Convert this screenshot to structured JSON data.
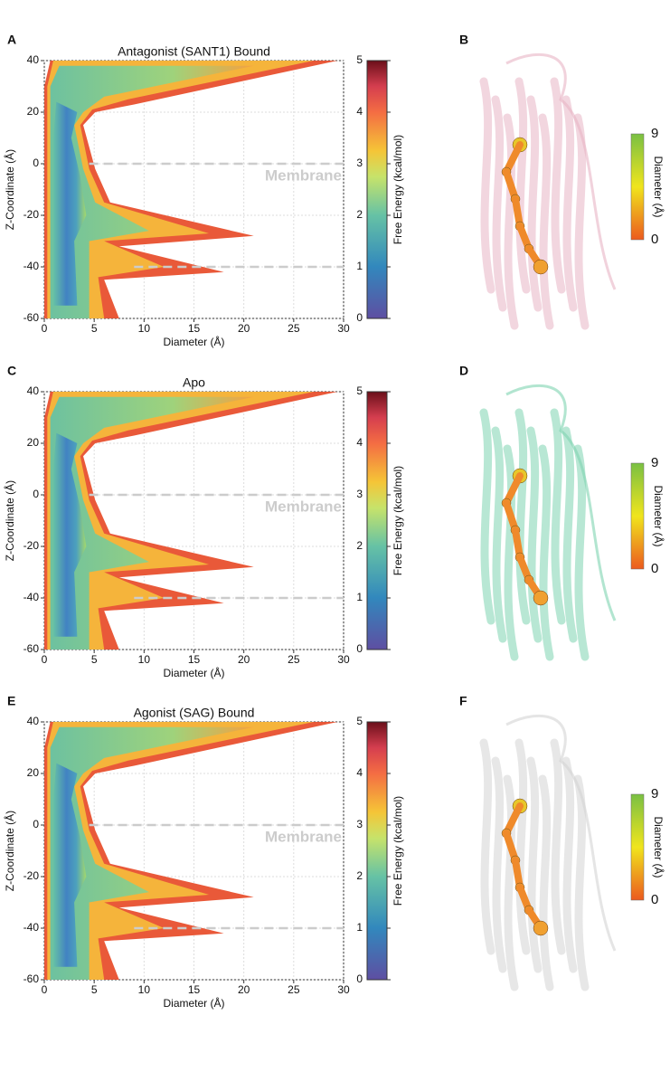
{
  "chart_data": [
    {
      "type": "heatmap",
      "panel": "A",
      "title": "Antagonist (SANT1) Bound",
      "x_label": "Diameter (Å)",
      "y_label": "Z-Coordinate (Å)",
      "xlim": [
        0,
        30
      ],
      "ylim": [
        -60,
        40
      ],
      "xticks": [
        0,
        5,
        10,
        15,
        20,
        25,
        30
      ],
      "yticks": [
        -60,
        -40,
        -20,
        0,
        20,
        40
      ],
      "grid": true,
      "colorbar_label": "Free Energy (kcal/mol)",
      "clim": [
        0,
        5
      ],
      "cticks": [
        0,
        1,
        2,
        3,
        4,
        5
      ],
      "reference_lines": [
        0,
        -40
      ],
      "annotation": "Membrane"
    },
    {
      "type": "heatmap",
      "panel": "C",
      "title": "Apo",
      "x_label": "Diameter (Å)",
      "y_label": "Z-Coordinate (Å)",
      "xlim": [
        0,
        30
      ],
      "ylim": [
        -60,
        40
      ],
      "xticks": [
        0,
        5,
        10,
        15,
        20,
        25,
        30
      ],
      "yticks": [
        -60,
        -40,
        -20,
        0,
        20,
        40
      ],
      "grid": true,
      "colorbar_label": "Free Energy (kcal/mol)",
      "clim": [
        0,
        5
      ],
      "cticks": [
        0,
        1,
        2,
        3,
        4,
        5
      ],
      "reference_lines": [
        0,
        -40
      ],
      "annotation": "Membrane"
    },
    {
      "type": "heatmap",
      "panel": "E",
      "title": "Agonist (SAG) Bound",
      "x_label": "Diameter (Å)",
      "y_label": "Z-Coordinate (Å)",
      "xlim": [
        0,
        30
      ],
      "ylim": [
        -60,
        40
      ],
      "xticks": [
        0,
        5,
        10,
        15,
        20,
        25,
        30
      ],
      "yticks": [
        -60,
        -40,
        -20,
        0,
        20,
        40
      ],
      "grid": true,
      "colorbar_label": "Free Energy (kcal/mol)",
      "clim": [
        0,
        5
      ],
      "cticks": [
        0,
        1,
        2,
        3,
        4,
        5
      ],
      "reference_lines": [
        0,
        -40
      ],
      "annotation": "Membrane"
    }
  ],
  "structures": [
    {
      "panel": "B",
      "color": "#e8b4c4",
      "colorbar_label": "Diameter (Å)",
      "clim": [
        0,
        9
      ],
      "cticks": [
        0,
        9
      ]
    },
    {
      "panel": "D",
      "color": "#7ed3b0",
      "colorbar_label": "Diameter (Å)",
      "clim": [
        0,
        9
      ],
      "cticks": [
        0,
        9
      ]
    },
    {
      "panel": "F",
      "color": "#d4d4d4",
      "colorbar_label": "Diameter (Å)",
      "clim": [
        0,
        9
      ],
      "cticks": [
        0,
        9
      ]
    }
  ]
}
